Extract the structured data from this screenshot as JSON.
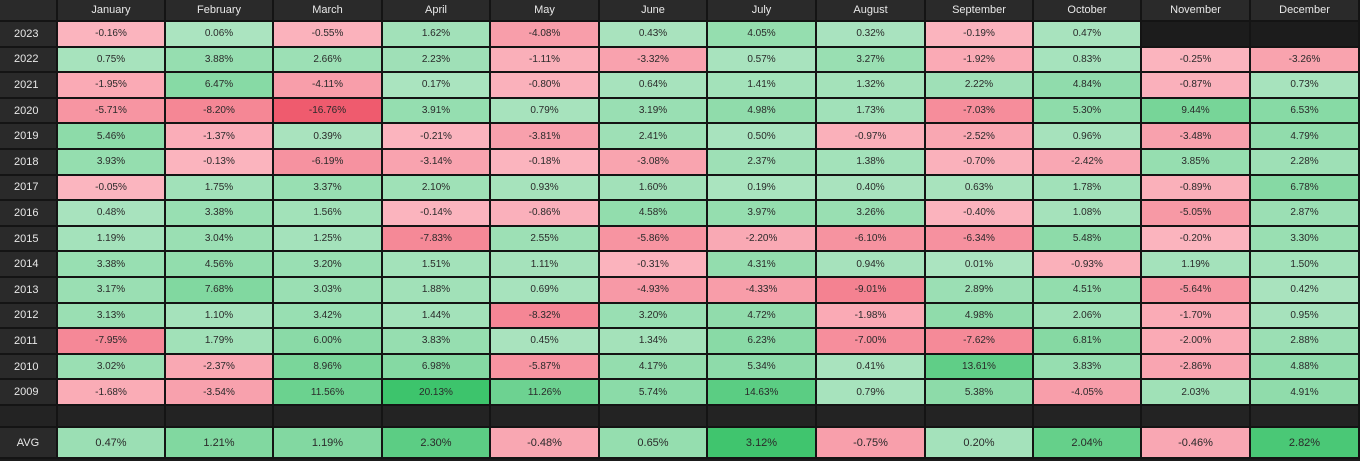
{
  "header": {
    "months": [
      "January",
      "February",
      "March",
      "April",
      "May",
      "June",
      "July",
      "August",
      "September",
      "October",
      "November",
      "December"
    ]
  },
  "rows": [
    {
      "year": "2023",
      "values": [
        "-0.16%",
        "0.06%",
        "-0.55%",
        "1.62%",
        "-4.08%",
        "0.43%",
        "4.05%",
        "0.32%",
        "-0.19%",
        "0.47%",
        "",
        ""
      ]
    },
    {
      "year": "2022",
      "values": [
        "0.75%",
        "3.88%",
        "2.66%",
        "2.23%",
        "-1.11%",
        "-3.32%",
        "0.57%",
        "3.27%",
        "-1.92%",
        "0.83%",
        "-0.25%",
        "-3.26%"
      ]
    },
    {
      "year": "2021",
      "values": [
        "-1.95%",
        "6.47%",
        "-4.11%",
        "0.17%",
        "-0.80%",
        "0.64%",
        "1.41%",
        "1.32%",
        "2.22%",
        "4.84%",
        "-0.87%",
        "0.73%"
      ]
    },
    {
      "year": "2020",
      "values": [
        "-5.71%",
        "-8.20%",
        "-16.76%",
        "3.91%",
        "0.79%",
        "3.19%",
        "4.98%",
        "1.73%",
        "-7.03%",
        "5.30%",
        "9.44%",
        "6.53%"
      ]
    },
    {
      "year": "2019",
      "values": [
        "5.46%",
        "-1.37%",
        "0.39%",
        "-0.21%",
        "-3.81%",
        "2.41%",
        "0.50%",
        "-0.97%",
        "-2.52%",
        "0.96%",
        "-3.48%",
        "4.79%"
      ]
    },
    {
      "year": "2018",
      "values": [
        "3.93%",
        "-0.13%",
        "-6.19%",
        "-3.14%",
        "-0.18%",
        "-3.08%",
        "2.37%",
        "1.38%",
        "-0.70%",
        "-2.42%",
        "3.85%",
        "2.28%"
      ]
    },
    {
      "year": "2017",
      "values": [
        "-0.05%",
        "1.75%",
        "3.37%",
        "2.10%",
        "0.93%",
        "1.60%",
        "0.19%",
        "0.40%",
        "0.63%",
        "1.78%",
        "-0.89%",
        "6.78%"
      ]
    },
    {
      "year": "2016",
      "values": [
        "0.48%",
        "3.38%",
        "1.56%",
        "-0.14%",
        "-0.86%",
        "4.58%",
        "3.97%",
        "3.26%",
        "-0.40%",
        "1.08%",
        "-5.05%",
        "2.87%"
      ]
    },
    {
      "year": "2015",
      "values": [
        "1.19%",
        "3.04%",
        "1.25%",
        "-7.83%",
        "2.55%",
        "-5.86%",
        "-2.20%",
        "-6.10%",
        "-6.34%",
        "5.48%",
        "-0.20%",
        "3.30%"
      ]
    },
    {
      "year": "2014",
      "values": [
        "3.38%",
        "4.56%",
        "3.20%",
        "1.51%",
        "1.11%",
        "-0.31%",
        "4.31%",
        "0.94%",
        "0.01%",
        "-0.93%",
        "1.19%",
        "1.50%"
      ]
    },
    {
      "year": "2013",
      "values": [
        "3.17%",
        "7.68%",
        "3.03%",
        "1.88%",
        "0.69%",
        "-4.93%",
        "-4.33%",
        "-9.01%",
        "2.89%",
        "4.51%",
        "-5.64%",
        "0.42%"
      ]
    },
    {
      "year": "2012",
      "values": [
        "3.13%",
        "1.10%",
        "3.42%",
        "1.44%",
        "-8.32%",
        "3.20%",
        "4.72%",
        "-1.98%",
        "4.98%",
        "2.06%",
        "-1.70%",
        "0.95%"
      ]
    },
    {
      "year": "2011",
      "values": [
        "-7.95%",
        "1.79%",
        "6.00%",
        "3.83%",
        "0.45%",
        "1.34%",
        "6.23%",
        "-7.00%",
        "-7.62%",
        "6.81%",
        "-2.00%",
        "2.88%"
      ]
    },
    {
      "year": "2010",
      "values": [
        "3.02%",
        "-2.37%",
        "8.96%",
        "6.98%",
        "-5.87%",
        "4.17%",
        "5.34%",
        "0.41%",
        "13.61%",
        "3.83%",
        "-2.86%",
        "4.88%"
      ]
    },
    {
      "year": "2009",
      "values": [
        "-1.68%",
        "-3.54%",
        "11.56%",
        "20.13%",
        "11.26%",
        "5.74%",
        "14.63%",
        "0.79%",
        "5.38%",
        "-4.05%",
        "2.03%",
        "4.91%"
      ]
    }
  ],
  "avg": {
    "label": "AVG",
    "values": [
      "0.47%",
      "1.21%",
      "1.19%",
      "2.30%",
      "-0.48%",
      "0.65%",
      "3.12%",
      "-0.75%",
      "0.20%",
      "2.04%",
      "-0.46%",
      "2.82%"
    ]
  },
  "colors": {
    "pos_light": "#abe4c0",
    "pos_strong": "#3dc46c",
    "neg_light": "#fbb5bf",
    "neg_strong": "#ef5b6e"
  }
}
